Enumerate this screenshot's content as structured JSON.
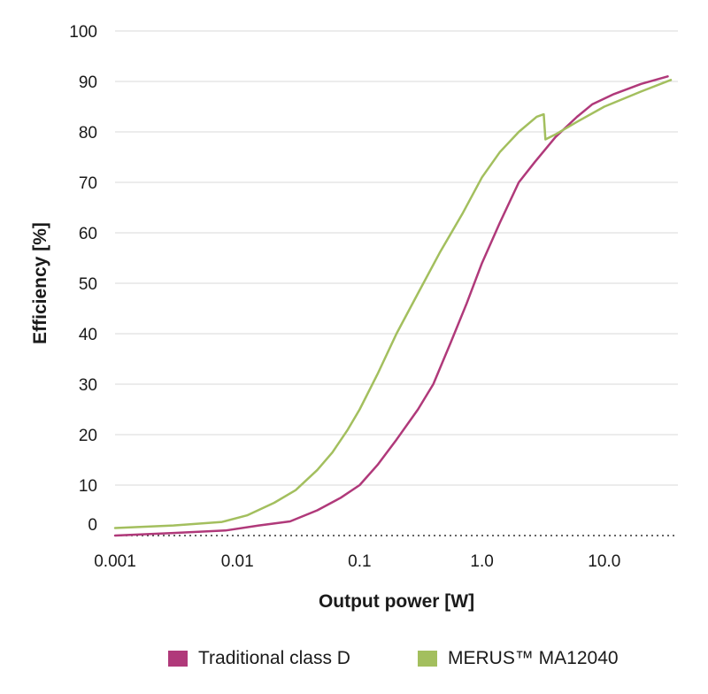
{
  "chart_data": {
    "type": "line",
    "xscale": "log",
    "xlim": [
      0.001,
      40
    ],
    "ylim": [
      0,
      100
    ],
    "xlabel": "Output power [W]",
    "ylabel": "Efficiency [%]",
    "x_ticks": [
      {
        "value": 0.001,
        "label": "0.001"
      },
      {
        "value": 0.01,
        "label": "0.01"
      },
      {
        "value": 0.1,
        "label": "0.1"
      },
      {
        "value": 1,
        "label": "1.0"
      },
      {
        "value": 10,
        "label": "10.0"
      }
    ],
    "y_ticks": [
      0,
      10,
      20,
      30,
      40,
      50,
      60,
      70,
      80,
      90,
      100
    ],
    "grid": "horizontal",
    "legend_position": "bottom",
    "series": [
      {
        "name": "Traditional class D",
        "color": "#b0397a",
        "points": [
          [
            0.001,
            0
          ],
          [
            0.003,
            0.5
          ],
          [
            0.008,
            1
          ],
          [
            0.015,
            2
          ],
          [
            0.027,
            2.8
          ],
          [
            0.045,
            5
          ],
          [
            0.07,
            7.5
          ],
          [
            0.1,
            10
          ],
          [
            0.14,
            14
          ],
          [
            0.2,
            19
          ],
          [
            0.3,
            25
          ],
          [
            0.4,
            30
          ],
          [
            0.55,
            38
          ],
          [
            0.75,
            46
          ],
          [
            1.0,
            54
          ],
          [
            1.4,
            62
          ],
          [
            2.0,
            70
          ],
          [
            2.7,
            74
          ],
          [
            4.0,
            79
          ],
          [
            6.0,
            83
          ],
          [
            8.0,
            85.5
          ],
          [
            12.0,
            87.5
          ],
          [
            20.0,
            89.5
          ],
          [
            33.0,
            91
          ]
        ]
      },
      {
        "name": "MERUS™  MA12040",
        "color": "#a3bf5e",
        "points": [
          [
            0.001,
            1.5
          ],
          [
            0.003,
            2
          ],
          [
            0.0075,
            2.7
          ],
          [
            0.012,
            4
          ],
          [
            0.02,
            6.5
          ],
          [
            0.03,
            9
          ],
          [
            0.045,
            13
          ],
          [
            0.06,
            16.5
          ],
          [
            0.08,
            21
          ],
          [
            0.1,
            25
          ],
          [
            0.14,
            32
          ],
          [
            0.2,
            40
          ],
          [
            0.3,
            48
          ],
          [
            0.45,
            56
          ],
          [
            0.7,
            64
          ],
          [
            1.0,
            71
          ],
          [
            1.4,
            76
          ],
          [
            2.0,
            80
          ],
          [
            2.8,
            83
          ],
          [
            3.2,
            83.5
          ],
          [
            3.3,
            78.5
          ],
          [
            4.0,
            79.5
          ],
          [
            6.0,
            82
          ],
          [
            10.0,
            85
          ],
          [
            20.0,
            88
          ],
          [
            35.0,
            90.3
          ]
        ]
      }
    ]
  }
}
